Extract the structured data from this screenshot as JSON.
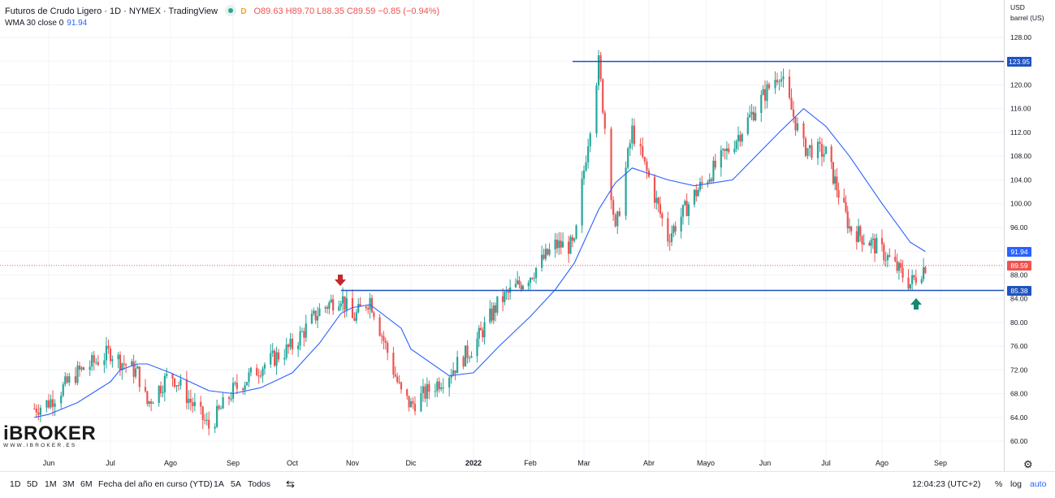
{
  "header": {
    "symbol_title": "Futuros de Crudo Ligero · 1D · NYMEX · TradingView",
    "status_letter": "D",
    "ohlc": "O89.63  H89.70  L88.35  C89.59  −0.85 (−0.94%)",
    "indicator_label": "WMA 30 close 0",
    "indicator_value": "91.94"
  },
  "price_axis": {
    "currency": "USD",
    "unit": "barrel (US)",
    "ticks": [
      "128.00",
      "124.00",
      "120.00",
      "116.00",
      "112.00",
      "108.00",
      "104.00",
      "100.00",
      "96.00",
      "92.00",
      "88.00",
      "84.00",
      "80.00",
      "76.00",
      "72.00",
      "68.00",
      "64.00",
      "60.00"
    ],
    "tags": [
      {
        "label": "123.95",
        "color": "#1e53c0",
        "value": 123.95
      },
      {
        "label": "91.94",
        "color": "#2962ff",
        "value": 91.94
      },
      {
        "label": "89.59",
        "color": "#ef5350",
        "value": 89.59
      },
      {
        "label": "85.38",
        "color": "#1e53c0",
        "value": 85.38
      }
    ]
  },
  "time_axis": [
    "Jun",
    "Jul",
    "Ago",
    "Sep",
    "Oct",
    "Nov",
    "Dic",
    "2022",
    "Feb",
    "Mar",
    "Abr",
    "Mayo",
    "Jun",
    "Jul",
    "Ago",
    "Sep"
  ],
  "logo": {
    "main": "iBROKER",
    "sub": "WWW.IBROKER.ES"
  },
  "bottom_bar": {
    "ranges": [
      "1D",
      "5D",
      "1M",
      "3M",
      "6M",
      "Fecha del año en curso (YTD)",
      "1A",
      "5A",
      "Todos"
    ],
    "time": "12:04:23 (UTC+2)",
    "percent": "%",
    "log": "log",
    "auto": "auto"
  },
  "colors": {
    "up": "#26a69a",
    "down": "#ef5350",
    "wma": "#2962ff",
    "level": "#1e53c0",
    "grid": "#f0f3fa"
  },
  "chart_data": {
    "type": "line",
    "title": "Futuros de Crudo Ligero · 1D · NYMEX",
    "x": [
      "2021-05-25",
      "2021-06-01",
      "2021-06-15",
      "2021-07-01",
      "2021-07-06",
      "2021-07-15",
      "2021-07-20",
      "2021-08-01",
      "2021-08-20",
      "2021-09-01",
      "2021-09-15",
      "2021-10-01",
      "2021-10-15",
      "2021-10-26",
      "2021-11-01",
      "2021-11-10",
      "2021-11-26",
      "2021-12-01",
      "2021-12-20",
      "2022-01-01",
      "2022-01-15",
      "2022-02-01",
      "2022-02-14",
      "2022-02-24",
      "2022-03-08",
      "2022-03-16",
      "2022-03-24",
      "2022-04-11",
      "2022-04-25",
      "2022-05-15",
      "2022-06-08",
      "2022-06-20",
      "2022-07-01",
      "2022-07-14",
      "2022-08-01",
      "2022-08-16",
      "2022-08-24"
    ],
    "series": [
      {
        "name": "Crudo Ligero (close)",
        "values": [
          65.5,
          66.5,
          71.5,
          75.0,
          73.5,
          71.5,
          66.3,
          71.5,
          62.3,
          68.5,
          72.5,
          76.0,
          82.0,
          84.5,
          80.5,
          84.0,
          68.0,
          66.0,
          71.5,
          76.0,
          83.5,
          88.0,
          93.0,
          92.8,
          123.7,
          95.0,
          112.3,
          94.3,
          101.5,
          110.0,
          122.1,
          109.5,
          108.5,
          96.0,
          92.0,
          86.5,
          89.59
        ]
      },
      {
        "name": "WMA 30 close 0",
        "values": [
          64.0,
          64.5,
          66.5,
          70.0,
          72.0,
          73.0,
          73.0,
          71.5,
          68.5,
          68.0,
          69.0,
          71.5,
          76.5,
          81.5,
          82.5,
          83.0,
          79.0,
          75.5,
          71.0,
          71.5,
          76.0,
          81.0,
          85.5,
          90.0,
          99.0,
          103.5,
          106.0,
          104.0,
          103.0,
          104.0,
          112.0,
          116.0,
          113.0,
          108.0,
          100.0,
          93.5,
          91.94
        ]
      }
    ],
    "levels": [
      123.95,
      85.38
    ],
    "ylim": [
      58.0,
      132.0
    ]
  }
}
